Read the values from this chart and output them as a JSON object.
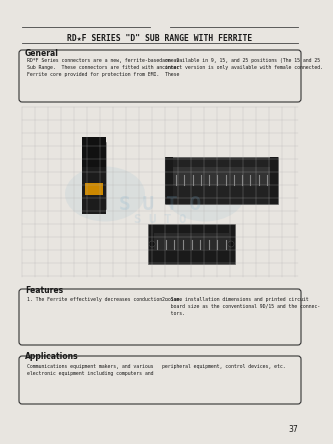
{
  "bg_color": "#e8e5e0",
  "page_bg": "#d8d4ce",
  "white_bg": "#e8e5e0",
  "title": "RD★F SERIES \"D\" SUB RANGE WITH FERRITE",
  "section_general": "General",
  "gen_text_left": "RD*F Series connectors are a new, ferrite-based one D\nSub Range.  These connectors are fitted with an inner\nFerrite core provided for protection from EMI.  These",
  "gen_text_right": "are available in 9, 15, and 25 positions (The 15 and 25\ncontact version is only available with female connected.",
  "section_features": "Features",
  "feat_text_left": "1. The Ferrite effectively decreases conduction noise.",
  "feat_text_right": "2. Same installation dimensions and printed circuit\n   board size as the conventional 9D/15 and the connec-\n   tors.",
  "section_applications": "Applications",
  "app_text_left": "Communications equipment makers, and various\nelectronic equipment including computers and",
  "app_text_right": "peripheral equipment, control devices, etc.",
  "page_number": "37",
  "line_color": "#444444",
  "box_color": "#333333",
  "text_color": "#1a1a1a",
  "grid_color": "#b0b0b0",
  "watermark_color": "#7aadcc"
}
